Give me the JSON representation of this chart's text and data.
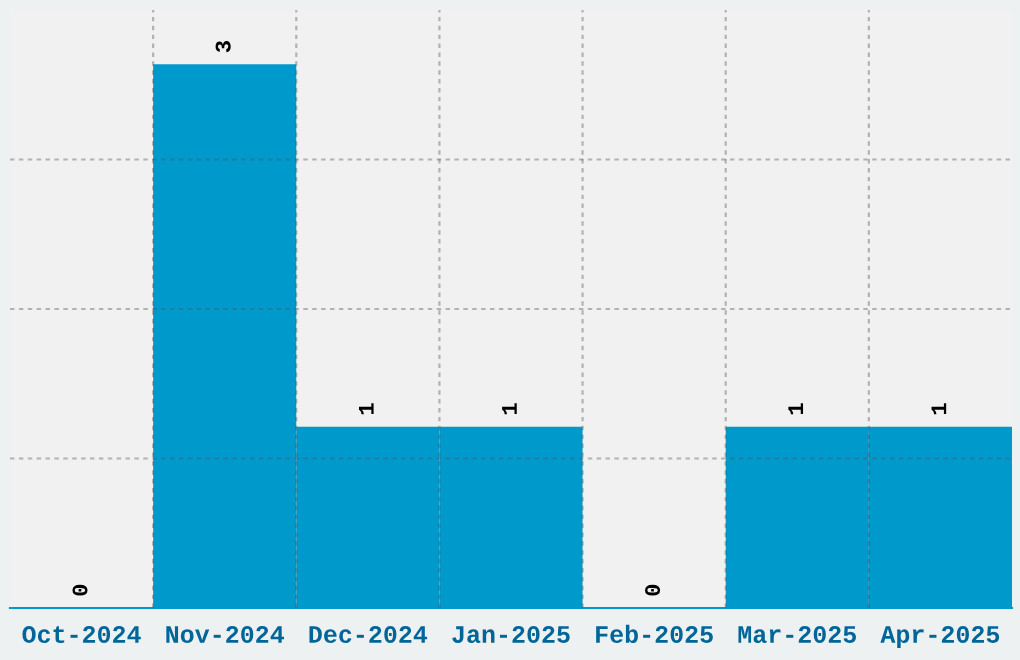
{
  "chart_data": {
    "type": "bar",
    "categories": [
      "Oct-2024",
      "Nov-2024",
      "Dec-2024",
      "Jan-2025",
      "Feb-2025",
      "Mar-2025",
      "Apr-2025"
    ],
    "values": [
      0,
      3,
      1,
      1,
      0,
      1,
      1
    ],
    "color": "#0099cc",
    "ylim": [
      0,
      3.3
    ],
    "yticks": [
      {
        "value": 0.825,
        "label": null
      },
      {
        "value": 1.65,
        "label": null
      },
      {
        "value": 2.475,
        "label": null
      }
    ],
    "tick_labels": "x",
    "grid": true,
    "data_labels": true
  }
}
